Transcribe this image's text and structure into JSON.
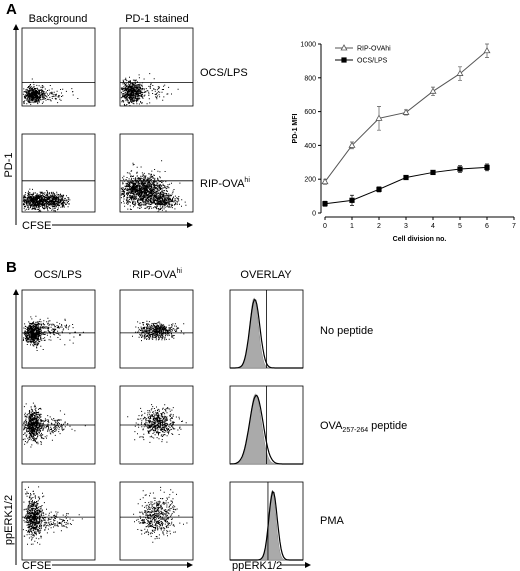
{
  "panel_a": {
    "label": "A",
    "col_labels": [
      "Background",
      "PD-1 stained"
    ],
    "row_labels": [
      {
        "text": "OCS/LPS"
      },
      {
        "text": "RIP-OVA",
        "sup": "hi"
      }
    ],
    "y_axis": "PD-1",
    "x_axis": "CFSE"
  },
  "chart_data": {
    "type": "line",
    "xlabel": "Cell division no.",
    "ylabel": "PD-1 MFI",
    "x": [
      0,
      1,
      2,
      3,
      4,
      5,
      6
    ],
    "xlim": [
      0,
      7
    ],
    "xticks": [
      0,
      1,
      2,
      3,
      4,
      5,
      6,
      7
    ],
    "ylim": [
      0,
      1000
    ],
    "yticks": [
      0,
      200,
      400,
      600,
      800,
      1000
    ],
    "legend": "upper left",
    "series": [
      {
        "name": "RIP-OVAhi",
        "color": "#555555",
        "marker": "triangle-open",
        "values": [
          185,
          400,
          560,
          595,
          720,
          825,
          960
        ],
        "errors": [
          15,
          20,
          70,
          15,
          25,
          40,
          40
        ]
      },
      {
        "name": "OCS/LPS",
        "color": "#000000",
        "marker": "square",
        "values": [
          55,
          75,
          140,
          210,
          240,
          260,
          270
        ],
        "errors": [
          15,
          30,
          15,
          8,
          12,
          20,
          20
        ]
      }
    ]
  },
  "panel_b": {
    "label": "B",
    "col_labels": [
      {
        "text": "OCS/LPS"
      },
      {
        "text": "RIP-OVA",
        "sup": "hi"
      },
      {
        "text": "OVERLAY"
      }
    ],
    "row_labels": [
      {
        "text": "No peptide"
      },
      {
        "text": "OVA",
        "sub": "257-264",
        "after": " peptide"
      },
      {
        "text": "PMA"
      }
    ],
    "y_axis": "ppERK1/2",
    "x_axis": "CFSE",
    "overlay_x_axis": "ppERK1/2"
  }
}
